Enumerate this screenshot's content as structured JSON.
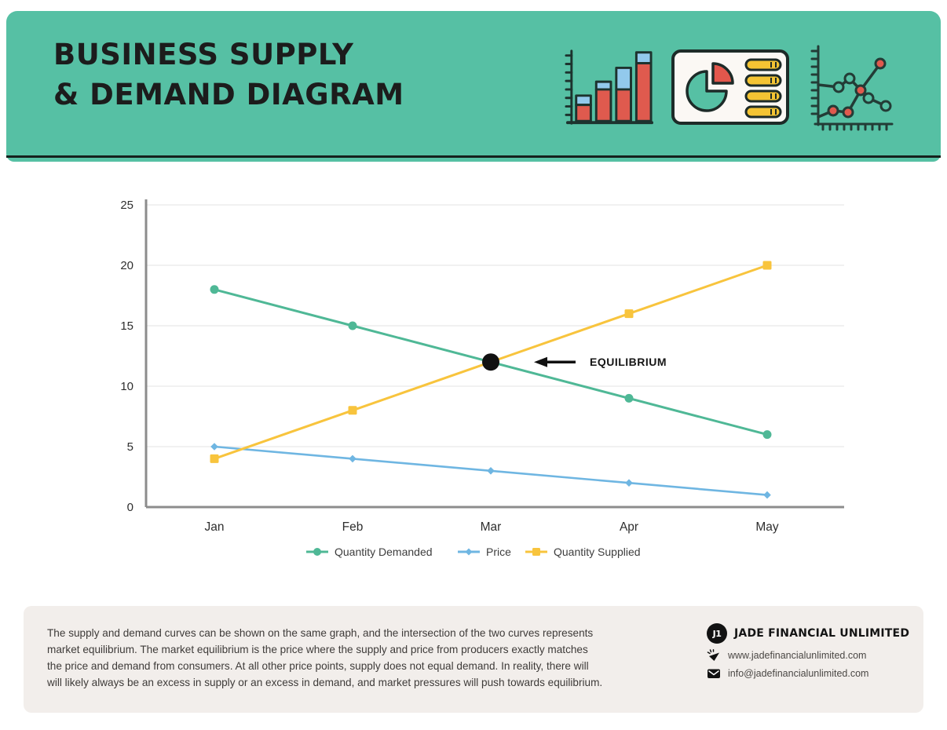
{
  "colors": {
    "header_background": "#56C0A4",
    "footer_background": "#F2EEEB",
    "demand_line": "#4FB896",
    "price_line": "#6FB6E2",
    "supply_line": "#F8C43D"
  },
  "header": {
    "title_line1": "BUSINESS SUPPLY",
    "title_line2": "& DEMAND DIAGRAM",
    "icons": [
      "bar-chart-icon",
      "pie-report-icon",
      "scatter-plot-icon"
    ]
  },
  "chart_data": {
    "type": "line",
    "categories": [
      "Jan",
      "Feb",
      "Mar",
      "Apr",
      "May"
    ],
    "series": [
      {
        "name": "Quantity Demanded",
        "marker": "circle",
        "color": "#4FB896",
        "values": [
          18,
          15,
          12,
          9,
          6
        ]
      },
      {
        "name": "Price",
        "marker": "diamond",
        "color": "#6FB6E2",
        "values": [
          5,
          4,
          3,
          2,
          1
        ]
      },
      {
        "name": "Quantity Supplied",
        "marker": "square",
        "color": "#F8C43D",
        "values": [
          4,
          8,
          12,
          16,
          20
        ]
      }
    ],
    "ylim": [
      0,
      25
    ],
    "yticks": [
      0,
      5,
      10,
      15,
      20,
      25
    ],
    "grid": true,
    "legend_position": "bottom",
    "annotation": {
      "label": "EQUILIBRIUM",
      "category": "Mar",
      "value": 12
    }
  },
  "footer": {
    "paragraph_lines": [
      "The supply and demand curves can be shown on the same graph, and the intersection of the two curves represents",
      "market equilibrium. The market equilibrium is the price where the supply and price from producers exactly matches",
      "the price and demand from consumers. At all other price points, supply does not equal demand. In reality, there will",
      "will likely always be an excess in supply or an excess in demand, and market pressures will push towards equilibrium."
    ],
    "brand": {
      "logo_monogram": "J1",
      "name": "JADE FINANCIAL UNLIMITED",
      "website": "www.jadefinancialunlimited.com",
      "email": "info@jadefinancialunlimited.com"
    }
  }
}
